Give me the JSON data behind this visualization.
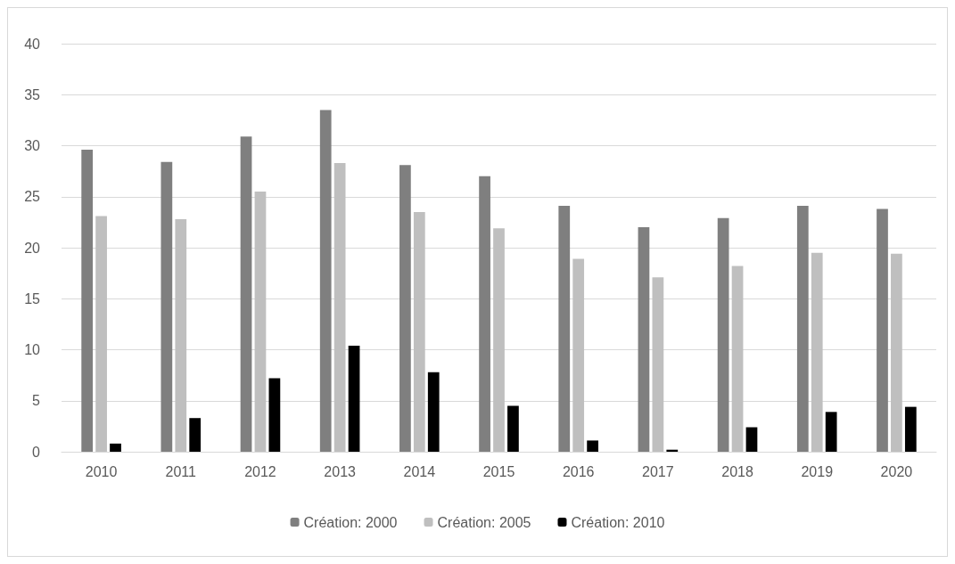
{
  "chart_data": {
    "type": "bar",
    "categories": [
      "2010",
      "2011",
      "2012",
      "2013",
      "2014",
      "2015",
      "2016",
      "2017",
      "2018",
      "2019",
      "2020"
    ],
    "series": [
      {
        "name": "Création: 2000",
        "color": "#7f7f7f",
        "values": [
          29.6,
          28.4,
          30.9,
          33.5,
          28.1,
          27.0,
          24.1,
          22.0,
          22.9,
          24.1,
          23.8
        ]
      },
      {
        "name": "Création: 2005",
        "color": "#bfbfbf",
        "values": [
          23.1,
          22.8,
          25.5,
          28.3,
          23.5,
          21.9,
          18.9,
          17.1,
          18.2,
          19.5,
          19.4
        ]
      },
      {
        "name": "Création: 2010",
        "color": "#000000",
        "values": [
          0.8,
          3.3,
          7.2,
          10.4,
          7.8,
          4.5,
          1.1,
          0.2,
          2.4,
          3.9,
          4.4
        ]
      }
    ],
    "ylim": [
      0,
      40
    ],
    "yticks": [
      0,
      5,
      10,
      15,
      20,
      25,
      30,
      35,
      40
    ],
    "grid": "y",
    "legend": "bottom"
  }
}
